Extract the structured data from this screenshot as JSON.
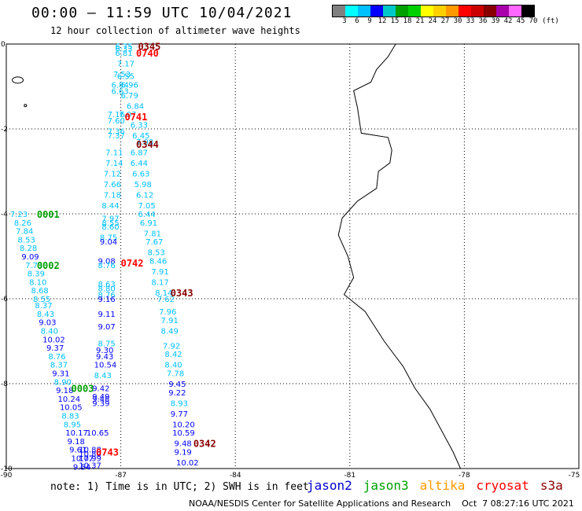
{
  "header": {
    "title": "00:00 – 11:59 UTC 10/04/2021",
    "subtitle": "12 hour collection of altimeter wave heights"
  },
  "colorscale": {
    "unit_label": "(ft)",
    "ticks": [
      "3",
      "6",
      "9",
      "12",
      "15",
      "18",
      "21",
      "24",
      "27",
      "30",
      "33",
      "36",
      "39",
      "42",
      "45",
      "70"
    ],
    "colors": [
      "#808080",
      "#00ffff",
      "#00bfff",
      "#0000ff",
      "#00c8c8",
      "#00a000",
      "#00d000",
      "#ffff00",
      "#ffd000",
      "#ff9900",
      "#ff0000",
      "#cc0000",
      "#880000",
      "#aa00aa",
      "#ff66ff",
      "#000000"
    ]
  },
  "map": {
    "x_ticks": [
      "-90",
      "-87",
      "-84",
      "-81",
      "-78",
      "-75"
    ],
    "y_ticks": [
      "0",
      "-2",
      "-4",
      "-6",
      "-8",
      "-10"
    ],
    "lon_range": [
      -90,
      -75
    ],
    "lat_range": [
      -10,
      0
    ]
  },
  "tracks": [
    {
      "name": "track-a",
      "points": [
        {
          "lon": -87.15,
          "lat": -0.05,
          "v": "6.75",
          "c": "#00bfff"
        },
        {
          "lon": -87.15,
          "lat": -0.1,
          "v": "6.33",
          "c": "#00bfff"
        },
        {
          "lon": -87.15,
          "lat": -0.2,
          "v": "6.81",
          "c": "#00bfff"
        },
        {
          "lon": -87.1,
          "lat": -0.45,
          "v": "7.17",
          "c": "#00bfff"
        },
        {
          "lon": -87.2,
          "lat": -0.7,
          "v": "7.53",
          "c": "#00bfff"
        },
        {
          "lon": -87.1,
          "lat": -0.75,
          "v": "6.55",
          "c": "#00bfff"
        },
        {
          "lon": -87.25,
          "lat": -0.95,
          "v": "6.84",
          "c": "#00bfff"
        },
        {
          "lon": -87.0,
          "lat": -0.95,
          "v": "6.96",
          "c": "#00bfff"
        },
        {
          "lon": -87.25,
          "lat": -1.1,
          "v": "6.63",
          "c": "#00bfff"
        },
        {
          "lon": -87.0,
          "lat": -1.2,
          "v": "6.79",
          "c": "#00bfff"
        },
        {
          "lon": -86.85,
          "lat": -1.45,
          "v": "6.84",
          "c": "#00bfff"
        },
        {
          "lon": -87.35,
          "lat": -1.65,
          "v": "7.16",
          "c": "#00bfff"
        },
        {
          "lon": -87.05,
          "lat": -1.65,
          "v": "7.07",
          "c": "#00bfff"
        },
        {
          "lon": -87.35,
          "lat": -1.8,
          "v": "7.60",
          "c": "#00bfff"
        },
        {
          "lon": -86.75,
          "lat": -1.9,
          "v": "6.33",
          "c": "#00bfff"
        },
        {
          "lon": -87.35,
          "lat": -2.05,
          "v": "7.36",
          "c": "#00bfff"
        },
        {
          "lon": -87.35,
          "lat": -2.15,
          "v": "7.37",
          "c": "#00bfff"
        },
        {
          "lon": -86.7,
          "lat": -2.15,
          "v": "6.45",
          "c": "#00bfff"
        },
        {
          "lon": -86.6,
          "lat": -2.3,
          "v": "7.08",
          "c": "#00bfff"
        },
        {
          "lon": -87.4,
          "lat": -2.55,
          "v": "7.11",
          "c": "#00bfff"
        },
        {
          "lon": -86.75,
          "lat": -2.55,
          "v": "6.87",
          "c": "#00bfff"
        },
        {
          "lon": -87.4,
          "lat": -2.8,
          "v": "7.14",
          "c": "#00bfff"
        },
        {
          "lon": -86.75,
          "lat": -2.8,
          "v": "6.44",
          "c": "#00bfff"
        },
        {
          "lon": -87.45,
          "lat": -3.05,
          "v": "7.12",
          "c": "#00bfff"
        },
        {
          "lon": -86.7,
          "lat": -3.05,
          "v": "6.63",
          "c": "#00bfff"
        },
        {
          "lon": -87.45,
          "lat": -3.3,
          "v": "7.66",
          "c": "#00bfff"
        },
        {
          "lon": -86.65,
          "lat": -3.3,
          "v": "5.98",
          "c": "#00bfff"
        },
        {
          "lon": -87.45,
          "lat": -3.55,
          "v": "7.18",
          "c": "#00bfff"
        },
        {
          "lon": -86.6,
          "lat": -3.55,
          "v": "6.12",
          "c": "#00bfff"
        },
        {
          "lon": -87.5,
          "lat": -3.8,
          "v": "8.44",
          "c": "#00bfff"
        },
        {
          "lon": -86.55,
          "lat": -3.8,
          "v": "7.05",
          "c": "#00bfff"
        },
        {
          "lon": -86.55,
          "lat": -4.0,
          "v": "6.44",
          "c": "#00bfff"
        },
        {
          "lon": -87.5,
          "lat": -4.1,
          "v": "7.97",
          "c": "#00bfff"
        },
        {
          "lon": -87.5,
          "lat": -4.2,
          "v": "8.55",
          "c": "#00bfff"
        },
        {
          "lon": -86.5,
          "lat": -4.2,
          "v": "6.91",
          "c": "#00bfff"
        },
        {
          "lon": -87.5,
          "lat": -4.3,
          "v": "8.60",
          "c": "#00bfff"
        },
        {
          "lon": -86.4,
          "lat": -4.45,
          "v": "7.81",
          "c": "#00bfff"
        },
        {
          "lon": -87.55,
          "lat": -4.55,
          "v": "8.75",
          "c": "#00bfff"
        },
        {
          "lon": -87.55,
          "lat": -4.65,
          "v": "9.04",
          "c": "#0000ff"
        },
        {
          "lon": -86.35,
          "lat": -4.65,
          "v": "7.67",
          "c": "#00bfff"
        },
        {
          "lon": -86.3,
          "lat": -4.9,
          "v": "8.53",
          "c": "#00bfff"
        },
        {
          "lon": -87.6,
          "lat": -5.1,
          "v": "9.08",
          "c": "#0000ff"
        },
        {
          "lon": -86.25,
          "lat": -5.1,
          "v": "8.46",
          "c": "#00bfff"
        },
        {
          "lon": -87.6,
          "lat": -5.2,
          "v": "8.76",
          "c": "#00bfff"
        },
        {
          "lon": -86.2,
          "lat": -5.35,
          "v": "7.91",
          "c": "#00bfff"
        },
        {
          "lon": -86.2,
          "lat": -5.6,
          "v": "8.17",
          "c": "#00bfff"
        },
        {
          "lon": -87.6,
          "lat": -5.65,
          "v": "8.63",
          "c": "#00bfff"
        },
        {
          "lon": -87.6,
          "lat": -5.75,
          "v": "8.80",
          "c": "#00bfff"
        },
        {
          "lon": -86.1,
          "lat": -5.85,
          "v": "8.14",
          "c": "#00bfff"
        },
        {
          "lon": -87.6,
          "lat": -5.9,
          "v": "8.76",
          "c": "#00bfff"
        },
        {
          "lon": -87.6,
          "lat": -6.0,
          "v": "9.16",
          "c": "#0000ff"
        },
        {
          "lon": -86.05,
          "lat": -6.0,
          "v": "7.62",
          "c": "#00bfff"
        },
        {
          "lon": -86.0,
          "lat": -6.3,
          "v": "7.96",
          "c": "#00bfff"
        },
        {
          "lon": -87.6,
          "lat": -6.35,
          "v": "9.11",
          "c": "#0000ff"
        },
        {
          "lon": -85.95,
          "lat": -6.5,
          "v": "7.91",
          "c": "#00bfff"
        },
        {
          "lon": -87.6,
          "lat": -6.65,
          "v": "9.07",
          "c": "#0000ff"
        },
        {
          "lon": -85.95,
          "lat": -6.75,
          "v": "8.49",
          "c": "#00bfff"
        },
        {
          "lon": -87.6,
          "lat": -7.05,
          "v": "8.75",
          "c": "#00bfff"
        },
        {
          "lon": -85.9,
          "lat": -7.1,
          "v": "7.92",
          "c": "#00bfff"
        },
        {
          "lon": -87.65,
          "lat": -7.2,
          "v": "9.30",
          "c": "#0000ff"
        },
        {
          "lon": -85.85,
          "lat": -7.3,
          "v": "8.42",
          "c": "#00bfff"
        },
        {
          "lon": -87.65,
          "lat": -7.35,
          "v": "9.43",
          "c": "#0000ff"
        },
        {
          "lon": -85.85,
          "lat": -7.55,
          "v": "8.40",
          "c": "#00bfff"
        },
        {
          "lon": -87.7,
          "lat": -7.55,
          "v": "10.54",
          "c": "#0000ff"
        },
        {
          "lon": -85.8,
          "lat": -7.75,
          "v": "7.78",
          "c": "#00bfff"
        },
        {
          "lon": -87.7,
          "lat": -7.8,
          "v": "8.43",
          "c": "#00bfff"
        },
        {
          "lon": -85.75,
          "lat": -8.0,
          "v": "9.45",
          "c": "#0000ff"
        },
        {
          "lon": -87.75,
          "lat": -8.1,
          "v": "9.42",
          "c": "#0000ff"
        },
        {
          "lon": -85.75,
          "lat": -8.2,
          "v": "9.22",
          "c": "#0000ff"
        },
        {
          "lon": -87.75,
          "lat": -8.3,
          "v": "9.49",
          "c": "#0000ff"
        },
        {
          "lon": -87.75,
          "lat": -8.35,
          "v": "9.48",
          "c": "#0000ff"
        },
        {
          "lon": -87.75,
          "lat": -8.45,
          "v": "9.39",
          "c": "#0000ff"
        },
        {
          "lon": -85.7,
          "lat": -8.45,
          "v": "8.93",
          "c": "#00bfff"
        },
        {
          "lon": -85.7,
          "lat": -8.7,
          "v": "9.77",
          "c": "#0000ff"
        },
        {
          "lon": -85.65,
          "lat": -8.95,
          "v": "10.20",
          "c": "#0000ff"
        },
        {
          "lon": -87.9,
          "lat": -9.15,
          "v": "10.65",
          "c": "#0000ff"
        },
        {
          "lon": -85.65,
          "lat": -9.15,
          "v": "10.59",
          "c": "#0000ff"
        },
        {
          "lon": -85.6,
          "lat": -9.4,
          "v": "9.48",
          "c": "#0000ff"
        },
        {
          "lon": -88.1,
          "lat": -9.55,
          "v": "10.88",
          "c": "#0000ff"
        },
        {
          "lon": -85.6,
          "lat": -9.6,
          "v": "9.19",
          "c": "#0000ff"
        },
        {
          "lon": -88.1,
          "lat": -9.65,
          "v": "10.80",
          "c": "#0000ff"
        },
        {
          "lon": -88.1,
          "lat": -9.75,
          "v": "10.99",
          "c": "#0000ff"
        },
        {
          "lon": -85.55,
          "lat": -9.85,
          "v": "10.02",
          "c": "#0000ff"
        },
        {
          "lon": -88.1,
          "lat": -9.92,
          "v": "10.37",
          "c": "#0000ff"
        }
      ]
    },
    {
      "name": "track-b",
      "points": [
        {
          "lon": -89.9,
          "lat": -4.0,
          "v": "7.23",
          "c": "#00bfff"
        },
        {
          "lon": -89.8,
          "lat": -4.2,
          "v": "8.26",
          "c": "#00bfff"
        },
        {
          "lon": -89.75,
          "lat": -4.4,
          "v": "7.84",
          "c": "#00bfff"
        },
        {
          "lon": -89.7,
          "lat": -4.6,
          "v": "8.53",
          "c": "#00bfff"
        },
        {
          "lon": -89.65,
          "lat": -4.8,
          "v": "8.28",
          "c": "#00bfff"
        },
        {
          "lon": -89.6,
          "lat": -5.0,
          "v": "9.09",
          "c": "#0000ff"
        },
        {
          "lon": -89.5,
          "lat": -5.2,
          "v": "7.73",
          "c": "#00bfff"
        },
        {
          "lon": -89.45,
          "lat": -5.4,
          "v": "8.39",
          "c": "#00bfff"
        },
        {
          "lon": -89.4,
          "lat": -5.6,
          "v": "8.10",
          "c": "#00bfff"
        },
        {
          "lon": -89.35,
          "lat": -5.8,
          "v": "8.68",
          "c": "#00bfff"
        },
        {
          "lon": -89.3,
          "lat": -6.0,
          "v": "8.55",
          "c": "#00bfff"
        },
        {
          "lon": -89.25,
          "lat": -6.15,
          "v": "8.37",
          "c": "#00bfff"
        },
        {
          "lon": -89.2,
          "lat": -6.35,
          "v": "8.43",
          "c": "#00bfff"
        },
        {
          "lon": -89.15,
          "lat": -6.55,
          "v": "9.03",
          "c": "#0000ff"
        },
        {
          "lon": -89.1,
          "lat": -6.75,
          "v": "8.40",
          "c": "#00bfff"
        },
        {
          "lon": -89.05,
          "lat": -6.95,
          "v": "10.02",
          "c": "#0000ff"
        },
        {
          "lon": -88.95,
          "lat": -7.15,
          "v": "9.37",
          "c": "#0000ff"
        },
        {
          "lon": -88.9,
          "lat": -7.35,
          "v": "8.76",
          "c": "#00bfff"
        },
        {
          "lon": -88.85,
          "lat": -7.55,
          "v": "8.37",
          "c": "#00bfff"
        },
        {
          "lon": -88.8,
          "lat": -7.75,
          "v": "9.31",
          "c": "#0000ff"
        },
        {
          "lon": -88.75,
          "lat": -7.95,
          "v": "8.90",
          "c": "#00bfff"
        },
        {
          "lon": -88.7,
          "lat": -8.15,
          "v": "9.18",
          "c": "#0000ff"
        },
        {
          "lon": -88.65,
          "lat": -8.35,
          "v": "10.24",
          "c": "#0000ff"
        },
        {
          "lon": -88.6,
          "lat": -8.55,
          "v": "10.05",
          "c": "#0000ff"
        },
        {
          "lon": -88.55,
          "lat": -8.75,
          "v": "8.83",
          "c": "#00bfff"
        },
        {
          "lon": -88.5,
          "lat": -8.95,
          "v": "8.95",
          "c": "#00bfff"
        },
        {
          "lon": -88.45,
          "lat": -9.15,
          "v": "10.17",
          "c": "#0000ff"
        },
        {
          "lon": -88.4,
          "lat": -9.35,
          "v": "9.18",
          "c": "#0000ff"
        },
        {
          "lon": -88.35,
          "lat": -9.55,
          "v": "9.61",
          "c": "#0000ff"
        },
        {
          "lon": -88.3,
          "lat": -9.75,
          "v": "10.77",
          "c": "#0000ff"
        },
        {
          "lon": -88.25,
          "lat": -9.95,
          "v": "9.54",
          "c": "#0000ff"
        }
      ]
    }
  ],
  "pass_labels": [
    {
      "lon": -86.55,
      "lat": -0.05,
      "text": "0345",
      "c": "#880000"
    },
    {
      "lon": -86.6,
      "lat": -0.2,
      "text": "0740",
      "c": "#ff0000"
    },
    {
      "lon": -86.9,
      "lat": -1.7,
      "text": "0741",
      "c": "#ff0000"
    },
    {
      "lon": -86.6,
      "lat": -2.35,
      "text": "0344",
      "c": "#880000"
    },
    {
      "lon": -89.2,
      "lat": -4.0,
      "text": "0001",
      "c": "#00a000"
    },
    {
      "lon": -87.0,
      "lat": -5.15,
      "text": "0742",
      "c": "#ff0000"
    },
    {
      "lon": -89.2,
      "lat": -5.2,
      "text": "0002",
      "c": "#00a000"
    },
    {
      "lon": -85.7,
      "lat": -5.85,
      "text": "0343",
      "c": "#880000"
    },
    {
      "lon": -88.3,
      "lat": -8.1,
      "text": "0003",
      "c": "#00a000"
    },
    {
      "lon": -85.1,
      "lat": -9.4,
      "text": "0342",
      "c": "#880000"
    },
    {
      "lon": -87.65,
      "lat": -9.6,
      "text": "0743",
      "c": "#ff0000"
    }
  ],
  "footer": {
    "note": "note: 1) Time is in UTC; 2) SWH is in feet",
    "satellites": [
      {
        "label": "jason2",
        "color": "#0000cc"
      },
      {
        "label": "jason3",
        "color": "#00a000"
      },
      {
        "label": "altika",
        "color": "#ff9900"
      },
      {
        "label": "cryosat",
        "color": "#ff0000"
      },
      {
        "label": "s3a",
        "color": "#880000"
      }
    ],
    "credit": "NOAA/NESDIS Center for Satellite Applications and Research    Oct  7 08:27:16 UTC 2021"
  }
}
